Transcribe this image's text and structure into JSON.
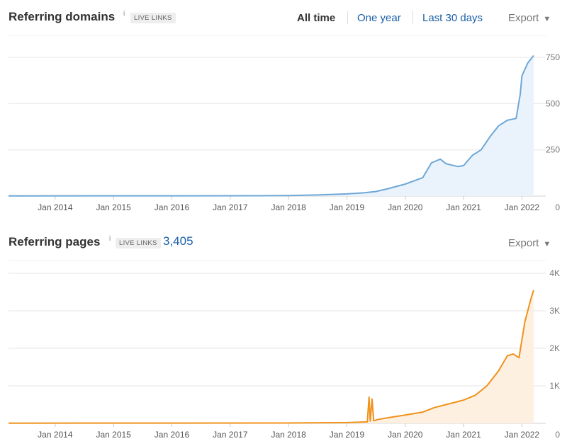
{
  "domains": {
    "title": "Referring domains",
    "info": "i",
    "badge": "LIVE LINKS",
    "time_ranges": [
      "All time",
      "One year",
      "Last 30 days"
    ],
    "active_range": "All time",
    "export_label": "Export",
    "caret": "▼"
  },
  "pages": {
    "title": "Referring pages",
    "info": "i",
    "badge": "LIVE LINKS",
    "metric": "3,405",
    "export_label": "Export",
    "caret": "▼"
  },
  "chart_data": [
    {
      "type": "area",
      "color": "#6ea7d6",
      "fill": "#eaf3fc",
      "x_ticks": [
        "Jan 2014",
        "Jan 2015",
        "Jan 2016",
        "Jan 2017",
        "Jan 2018",
        "Jan 2019",
        "Jan 2020",
        "Jan 2021",
        "Jan 2022"
      ],
      "y_ticks": [
        "750",
        "500",
        "250",
        "0"
      ],
      "y_tick_values": [
        750,
        500,
        250,
        0
      ],
      "ylim": [
        0,
        800
      ],
      "xlim": [
        2013.2,
        2022.25
      ],
      "grid": true,
      "series": [
        {
          "x": [
            2013.2,
            2017.5,
            2018.0,
            2018.5,
            2019.0,
            2019.3,
            2019.5,
            2019.7,
            2020.0,
            2020.3,
            2020.45,
            2020.6,
            2020.7,
            2020.9,
            2021.0,
            2021.15,
            2021.3,
            2021.45,
            2021.6,
            2021.75,
            2021.9,
            2021.97,
            2022.0,
            2022.1,
            2022.2
          ],
          "y": [
            1,
            2,
            3,
            6,
            12,
            18,
            25,
            40,
            65,
            100,
            180,
            200,
            175,
            160,
            165,
            220,
            250,
            320,
            380,
            410,
            420,
            550,
            650,
            720,
            760
          ]
        }
      ]
    },
    {
      "type": "area",
      "color": "#f0921c",
      "fill": "#fdf0e1",
      "x_ticks": [
        "Jan 2014",
        "Jan 2015",
        "Jan 2016",
        "Jan 2017",
        "Jan 2018",
        "Jan 2019",
        "Jan 2020",
        "Jan 2021",
        "Jan 2022"
      ],
      "y_ticks": [
        "4K",
        "3K",
        "2K",
        "1K",
        "0"
      ],
      "y_tick_values": [
        4000,
        3000,
        2000,
        1000,
        0
      ],
      "ylim": [
        0,
        4000
      ],
      "xlim": [
        2013.2,
        2022.25
      ],
      "grid": true,
      "series": [
        {
          "x": [
            2013.2,
            2018.0,
            2019.0,
            2019.35,
            2019.38,
            2019.4,
            2019.43,
            2019.46,
            2019.49,
            2019.52,
            2019.7,
            2020.0,
            2020.3,
            2020.5,
            2020.7,
            2021.0,
            2021.2,
            2021.4,
            2021.6,
            2021.75,
            2021.85,
            2021.95,
            2022.05,
            2022.15,
            2022.2
          ],
          "y": [
            5,
            10,
            20,
            40,
            700,
            60,
            650,
            70,
            80,
            100,
            150,
            220,
            300,
            420,
            500,
            620,
            750,
            1000,
            1400,
            1800,
            1850,
            1750,
            2700,
            3300,
            3550
          ]
        }
      ]
    }
  ]
}
